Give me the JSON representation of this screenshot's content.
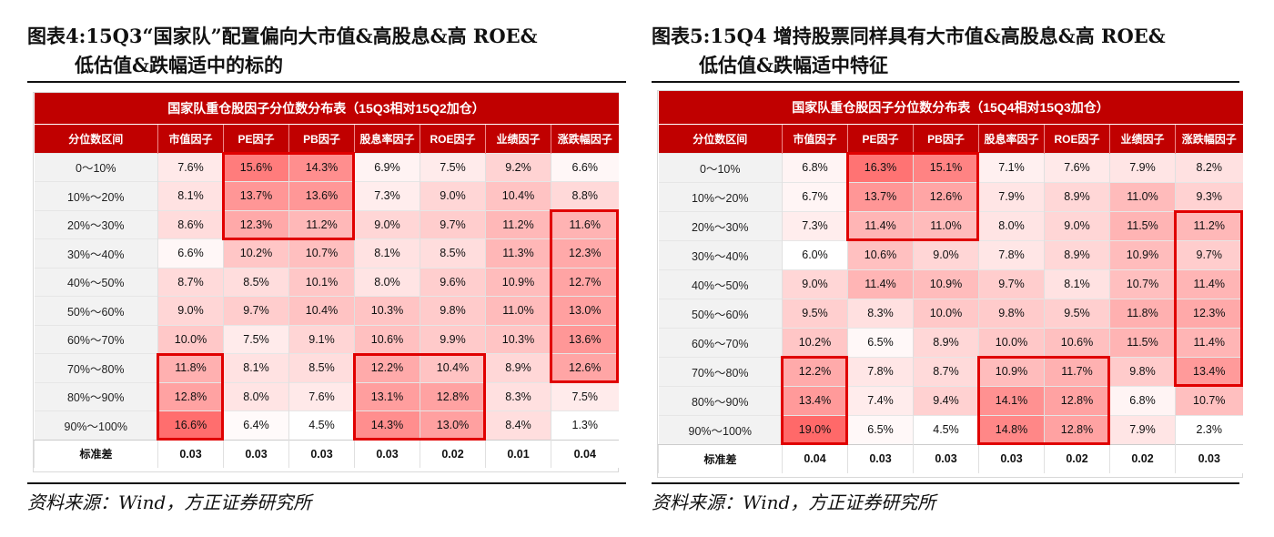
{
  "left": {
    "caption_line1": "图表4:15Q3“国家队”配置偏向大市值&高股息&高 ROE&",
    "caption_line2": "低估值&跌幅适中的标的",
    "table_title": "国家队重仓股因子分位数分布表（15Q3相对15Q2加仓）",
    "headers": [
      "分位数区间",
      "市值因子",
      "PE因子",
      "PB因子",
      "股息率因子",
      "ROE因子",
      "业绩因子",
      "涨跌幅因子"
    ],
    "rows": [
      {
        "label": "0～10%",
        "cells": [
          "7.6%",
          "15.6%",
          "14.3%",
          "6.9%",
          "7.5%",
          "9.2%",
          "6.6%"
        ]
      },
      {
        "label": "10%～20%",
        "cells": [
          "8.1%",
          "13.7%",
          "13.6%",
          "7.3%",
          "9.0%",
          "10.4%",
          "8.8%"
        ]
      },
      {
        "label": "20%～30%",
        "cells": [
          "8.6%",
          "12.3%",
          "11.2%",
          "9.0%",
          "9.7%",
          "11.2%",
          "11.6%"
        ]
      },
      {
        "label": "30%～40%",
        "cells": [
          "6.6%",
          "10.2%",
          "10.7%",
          "8.1%",
          "8.5%",
          "11.3%",
          "12.3%"
        ]
      },
      {
        "label": "40%～50%",
        "cells": [
          "8.7%",
          "8.5%",
          "10.1%",
          "8.0%",
          "9.6%",
          "10.9%",
          "12.7%"
        ]
      },
      {
        "label": "50%～60%",
        "cells": [
          "9.0%",
          "9.7%",
          "10.4%",
          "10.3%",
          "9.8%",
          "11.0%",
          "13.0%"
        ]
      },
      {
        "label": "60%～70%",
        "cells": [
          "10.0%",
          "7.5%",
          "9.1%",
          "10.6%",
          "9.9%",
          "10.3%",
          "13.6%"
        ]
      },
      {
        "label": "70%～80%",
        "cells": [
          "11.8%",
          "8.1%",
          "8.5%",
          "12.2%",
          "10.4%",
          "8.9%",
          "12.6%"
        ]
      },
      {
        "label": "80%～90%",
        "cells": [
          "12.8%",
          "8.0%",
          "7.6%",
          "13.1%",
          "12.8%",
          "8.3%",
          "7.5%"
        ]
      },
      {
        "label": "90%～100%",
        "cells": [
          "16.6%",
          "6.4%",
          "4.5%",
          "14.3%",
          "13.0%",
          "8.4%",
          "1.3%"
        ]
      }
    ],
    "std_label": "标准差",
    "std_values": [
      "0.03",
      "0.03",
      "0.03",
      "0.03",
      "0.02",
      "0.01",
      "0.04"
    ],
    "source": "资料来源：Wind，方正证券研究所"
  },
  "right": {
    "caption_line1": "图表5:15Q4 增持股票同样具有大市值&高股息&高 ROE&",
    "caption_line2": "低估值&跌幅适中特征",
    "table_title": "国家队重仓股因子分位数分布表（15Q4相对15Q3加仓）",
    "headers": [
      "分位数区间",
      "市值因子",
      "PE因子",
      "PB因子",
      "股息率因子",
      "ROE因子",
      "业绩因子",
      "涨跌幅因子"
    ],
    "rows": [
      {
        "label": "0～10%",
        "cells": [
          "6.8%",
          "16.3%",
          "15.1%",
          "7.1%",
          "7.6%",
          "7.9%",
          "8.2%"
        ]
      },
      {
        "label": "10%～20%",
        "cells": [
          "6.7%",
          "13.7%",
          "12.6%",
          "7.9%",
          "8.9%",
          "11.0%",
          "9.3%"
        ]
      },
      {
        "label": "20%～30%",
        "cells": [
          "7.3%",
          "11.4%",
          "11.0%",
          "8.0%",
          "9.0%",
          "11.5%",
          "11.2%"
        ]
      },
      {
        "label": "30%～40%",
        "cells": [
          "6.0%",
          "10.6%",
          "9.0%",
          "7.8%",
          "8.9%",
          "10.9%",
          "9.7%"
        ]
      },
      {
        "label": "40%～50%",
        "cells": [
          "9.0%",
          "11.4%",
          "10.9%",
          "9.7%",
          "8.1%",
          "10.7%",
          "11.4%"
        ]
      },
      {
        "label": "50%～60%",
        "cells": [
          "9.5%",
          "8.3%",
          "10.0%",
          "9.8%",
          "9.5%",
          "11.8%",
          "12.3%"
        ]
      },
      {
        "label": "60%～70%",
        "cells": [
          "10.2%",
          "6.5%",
          "8.9%",
          "10.0%",
          "10.6%",
          "11.5%",
          "11.4%"
        ]
      },
      {
        "label": "70%～80%",
        "cells": [
          "12.2%",
          "7.8%",
          "8.7%",
          "10.9%",
          "11.7%",
          "9.8%",
          "13.4%"
        ]
      },
      {
        "label": "80%～90%",
        "cells": [
          "13.4%",
          "7.4%",
          "9.4%",
          "14.1%",
          "12.8%",
          "6.8%",
          "10.7%"
        ]
      },
      {
        "label": "90%～100%",
        "cells": [
          "19.0%",
          "6.5%",
          "4.5%",
          "14.8%",
          "12.8%",
          "7.9%",
          "2.3%"
        ]
      }
    ],
    "std_label": "标准差",
    "std_values": [
      "0.04",
      "0.03",
      "0.03",
      "0.03",
      "0.02",
      "0.02",
      "0.03"
    ],
    "source": "资料来源：Wind，方正证券研究所"
  }
}
